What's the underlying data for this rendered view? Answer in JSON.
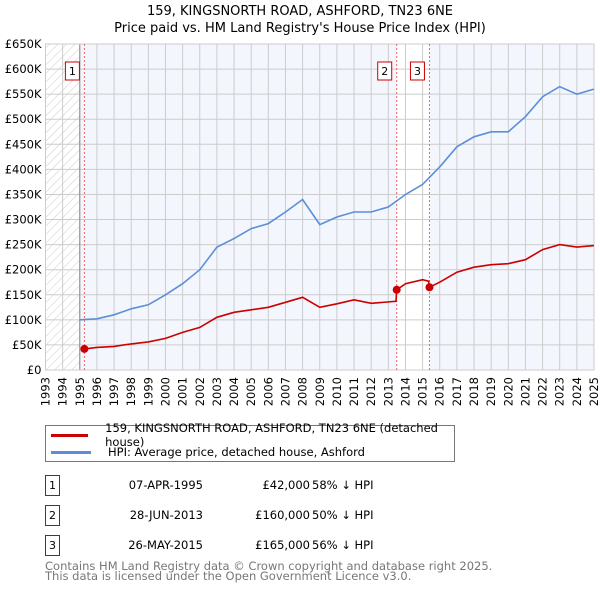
{
  "chart_data": {
    "type": "line",
    "title": "159, KINGSNORTH ROAD, ASHFORD, TN23 6NE",
    "subtitle": "Price paid vs. HM Land Registry's House Price Index (HPI)",
    "xlim": [
      1993,
      2025
    ],
    "ylim": [
      0,
      650000
    ],
    "x_ticks": [
      "1993",
      "1994",
      "1995",
      "1996",
      "1997",
      "1998",
      "1999",
      "2000",
      "2001",
      "2002",
      "2003",
      "2004",
      "2005",
      "2006",
      "2007",
      "2008",
      "2009",
      "2010",
      "2011",
      "2012",
      "2013",
      "2014",
      "2015",
      "2016",
      "2017",
      "2018",
      "2019",
      "2020",
      "2021",
      "2022",
      "2023",
      "2024",
      "2025"
    ],
    "y_ticks": [
      "£0",
      "£50K",
      "£100K",
      "£150K",
      "£200K",
      "£250K",
      "£300K",
      "£350K",
      "£400K",
      "£450K",
      "£500K",
      "£550K",
      "£600K",
      "£650K"
    ],
    "grid": true,
    "series": [
      {
        "name": "159, KINGSNORTH ROAD, ASHFORD, TN23 6NE (detached house)",
        "color": "#cc0000",
        "x": [
          1995.27,
          1996,
          1997,
          1998,
          1999,
          2000,
          2001,
          2002,
          2003,
          2004,
          2005,
          2006,
          2007,
          2008,
          2009,
          2010,
          2011,
          2012,
          2013.45,
          2013.49,
          2014,
          2015,
          2015.35,
          2015.4,
          2016,
          2017,
          2018,
          2019,
          2020,
          2021,
          2022,
          2023,
          2024,
          2025
        ],
        "y": [
          42000,
          45000,
          47000,
          52000,
          56000,
          63000,
          75000,
          85000,
          105000,
          115000,
          120000,
          125000,
          135000,
          145000,
          125000,
          132000,
          140000,
          133000,
          137000,
          160000,
          172000,
          180000,
          177000,
          165000,
          175000,
          195000,
          205000,
          210000,
          212000,
          220000,
          240000,
          250000,
          245000,
          248000
        ]
      },
      {
        "name": "HPI: Average price, detached house, Ashford",
        "color": "#5b8fd6",
        "x": [
          1995,
          1996,
          1997,
          1998,
          1999,
          2000,
          2001,
          2002,
          2003,
          2004,
          2005,
          2006,
          2007,
          2008,
          2009,
          2010,
          2011,
          2012,
          2013,
          2014,
          2015,
          2016,
          2017,
          2018,
          2019,
          2020,
          2021,
          2022,
          2023,
          2024,
          2025
        ],
        "y": [
          100000,
          102000,
          110000,
          122000,
          130000,
          150000,
          172000,
          200000,
          245000,
          262000,
          282000,
          292000,
          315000,
          340000,
          290000,
          305000,
          315000,
          315000,
          325000,
          350000,
          370000,
          405000,
          445000,
          465000,
          475000,
          475000,
          505000,
          545000,
          565000,
          550000,
          560000
        ]
      }
    ],
    "sales": [
      {
        "label": "1",
        "x": 1995.27,
        "y": 42000
      },
      {
        "label": "2",
        "x": 2013.49,
        "y": 160000
      },
      {
        "label": "3",
        "x": 2015.4,
        "y": 165000
      }
    ],
    "legend_position": "below"
  },
  "table": [
    {
      "num": "1",
      "date": "07-APR-1995",
      "price": "£42,000",
      "hpi": "58% ↓ HPI"
    },
    {
      "num": "2",
      "date": "28-JUN-2013",
      "price": "£160,000",
      "hpi": "50% ↓ HPI"
    },
    {
      "num": "3",
      "date": "26-MAY-2015",
      "price": "£165,000",
      "hpi": "56% ↓ HPI"
    }
  ],
  "footer": [
    "Contains HM Land Registry data © Crown copyright and database right 2025.",
    "This data is licensed under the Open Government Licence v3.0."
  ]
}
